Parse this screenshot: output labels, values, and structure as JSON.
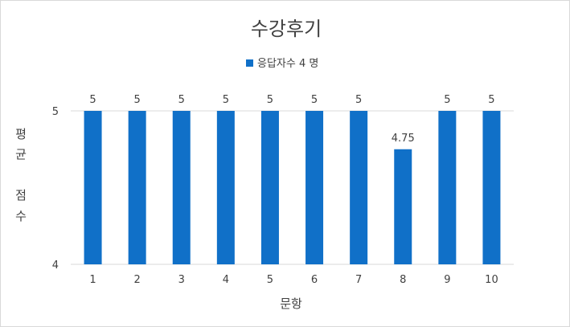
{
  "chart_data": {
    "type": "bar",
    "title": "수강후기",
    "legend": {
      "position": "top",
      "series_label": "응답자수 4 명"
    },
    "series": [
      {
        "name": "응답자수 4 명",
        "color": "#1070c8",
        "values": [
          5,
          5,
          5,
          5,
          5,
          5,
          5,
          4.75,
          5,
          5
        ]
      }
    ],
    "categories": [
      "1",
      "2",
      "3",
      "4",
      "5",
      "6",
      "7",
      "8",
      "9",
      "10"
    ],
    "data_labels": [
      "5",
      "5",
      "5",
      "5",
      "5",
      "5",
      "5",
      "4.75",
      "5",
      "5"
    ],
    "xlabel": "문항",
    "ylabel_lines": [
      "평",
      "균",
      "점",
      "수"
    ],
    "ylim": [
      4,
      5
    ],
    "yticks": [
      4,
      5
    ],
    "ytick_labels": [
      "4",
      "5"
    ],
    "grid": true
  }
}
